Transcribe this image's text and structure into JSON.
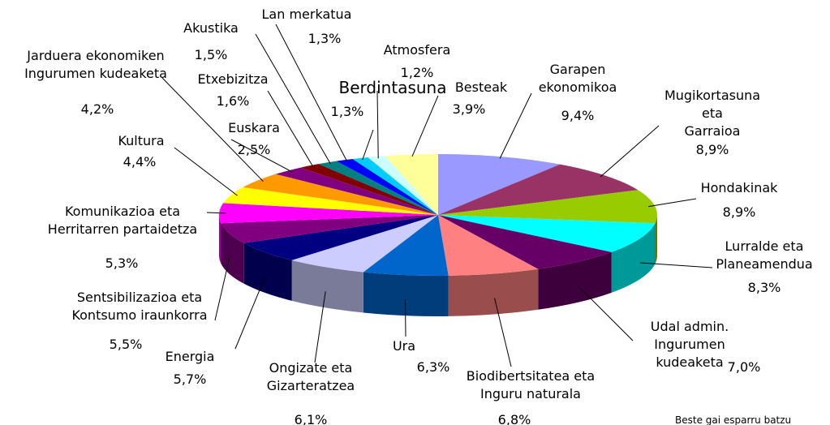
{
  "chart_data": {
    "type": "pie3d",
    "categories": [
      "Garapen\nekonomikoa",
      "Mugikortasuna eta\nGarraioa",
      "Hondakinak",
      "Lurralde eta\nPlaneamendua",
      "Udal admin. Ingurumen\nkudeaketa",
      "Biodibertsitatea eta\nInguru naturala",
      "Ura",
      "Ongizate eta\nGizarteratzea",
      "Energia",
      "Sentsibilizazioa eta\nKontsumo iraunkorra",
      "Komunikazioa eta\nHerritarren partaidetza",
      "Kultura",
      "Jarduera ekonomiken\nIngurumen kudeaketa",
      "Euskara",
      "Etxebizitza",
      "Akustika",
      "Lan merkatua",
      "Atmosfera",
      "Berdintasuna",
      "Besteak"
    ],
    "values": [
      9.4,
      8.9,
      8.9,
      8.3,
      7.0,
      6.8,
      6.3,
      6.1,
      5.7,
      5.5,
      5.3,
      4.4,
      4.2,
      2.5,
      1.6,
      1.5,
      1.3,
      1.2,
      1.3,
      3.9
    ],
    "value_labels": [
      "9,4%",
      "8,9%",
      "8,9%",
      "8,3%",
      "7,0%",
      "6,8%",
      "6,3%",
      "6,1%",
      "5,7%",
      "5,5%",
      "5,3%",
      "4,4%",
      "4,2%",
      "2,5%",
      "1,6%",
      "1,5%",
      "1,3%",
      "1,2%",
      "1,3%",
      "3,9%"
    ],
    "colors": [
      "#9999ff",
      "#993366",
      "#99cc00",
      "#00ffff",
      "#660066",
      "#ff8080",
      "#0066cc",
      "#ccccff",
      "#000080",
      "#800080",
      "#ff00ff",
      "#ffff00",
      "#ff9900",
      "#800080",
      "#800000",
      "#008080",
      "#0000ff",
      "#00ccff",
      "#ccffff",
      "#ffff99"
    ],
    "note": "Beste gai esparru batzu"
  }
}
